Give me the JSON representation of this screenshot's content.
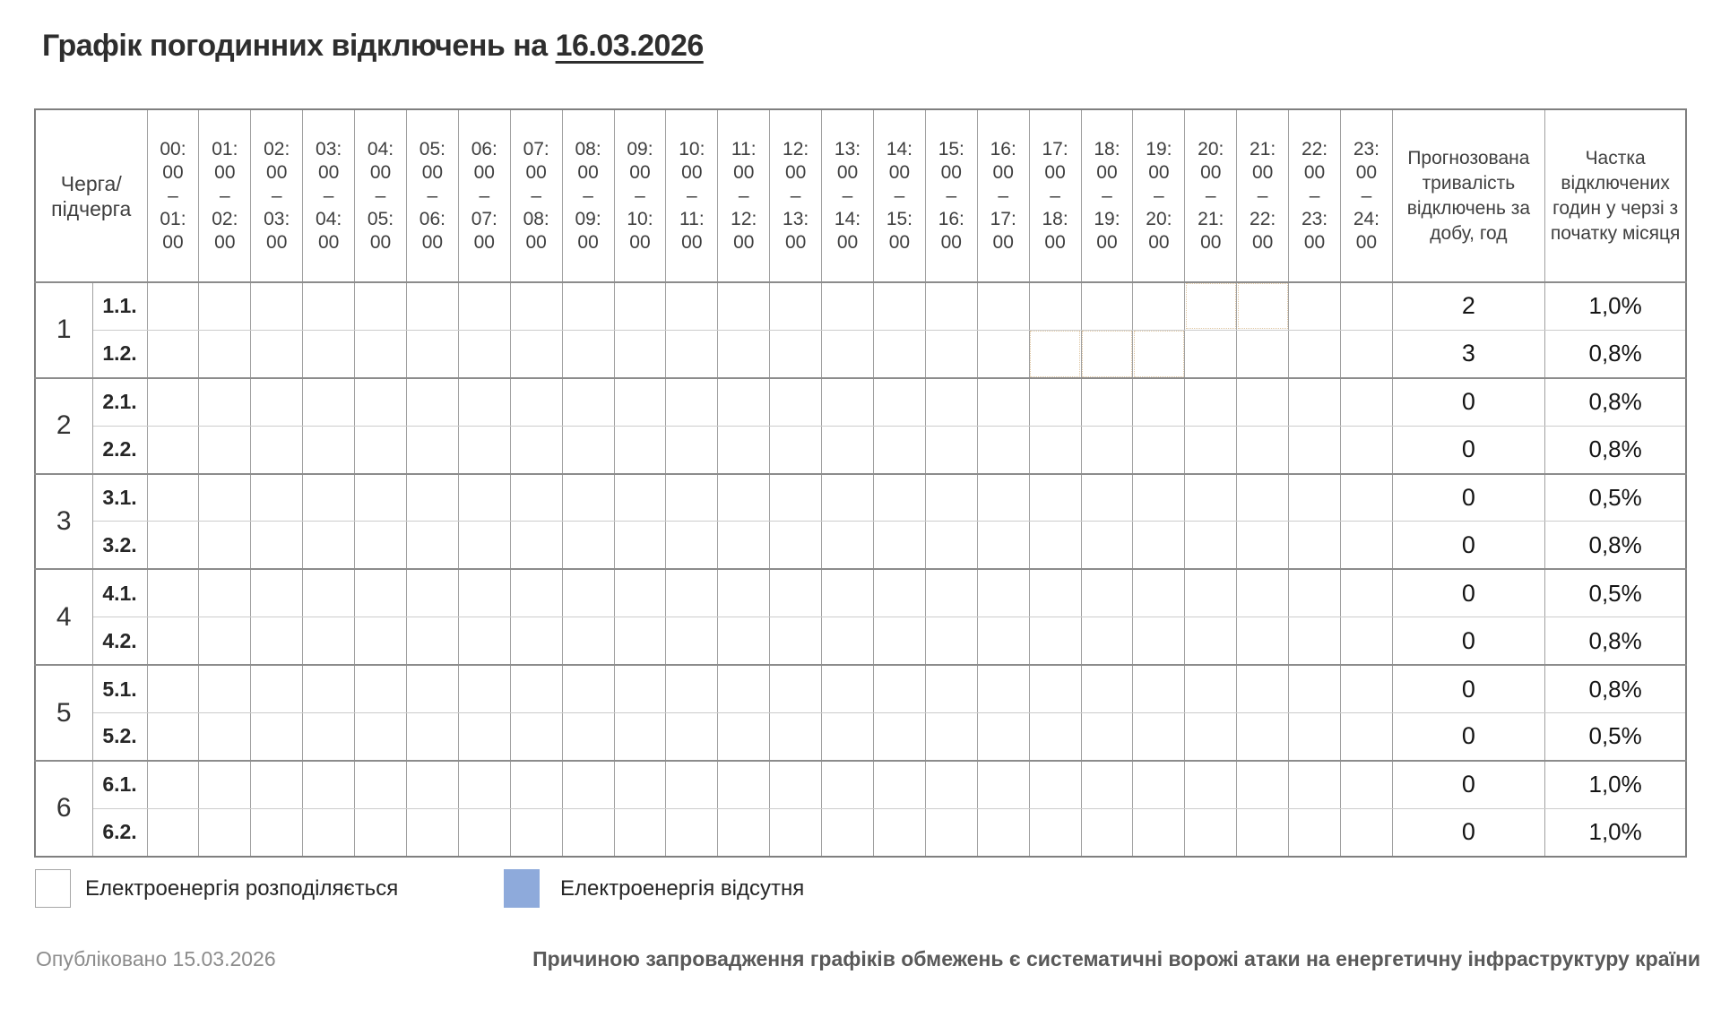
{
  "page": {
    "title_prefix": "Графік погодинних відключень на ",
    "title_date": "16.03.2026"
  },
  "chart_data": {
    "type": "table",
    "title": "Графік погодинних відключень на 16.03.2026",
    "corner_header": "Черга/підчерга",
    "hour_columns": [
      "00:00–01:00",
      "01:00–02:00",
      "02:00–03:00",
      "03:00–04:00",
      "04:00–05:00",
      "05:00–06:00",
      "06:00–07:00",
      "07:00–08:00",
      "08:00–09:00",
      "09:00–10:00",
      "10:00–11:00",
      "11:00–12:00",
      "12:00–13:00",
      "13:00–14:00",
      "14:00–15:00",
      "15:00–16:00",
      "16:00–17:00",
      "17:00–18:00",
      "18:00–19:00",
      "19:00–20:00",
      "20:00–21:00",
      "21:00–22:00",
      "22:00–23:00",
      "23:00–24:00"
    ],
    "duration_header": "Прогнозована тривалість відключень за добу, год",
    "share_header": "Частка відключених годин у черзі з початку місяця",
    "rows": [
      {
        "queue": "1",
        "subqueue": "1.1.",
        "outage_hour_indices": [
          20,
          21
        ],
        "outage_intervals": [
          "20:00–22:00"
        ],
        "duration_hours": 2,
        "share": "1,0%"
      },
      {
        "queue": "1",
        "subqueue": "1.2.",
        "outage_hour_indices": [
          17,
          18,
          19
        ],
        "outage_intervals": [
          "17:00–20:00"
        ],
        "duration_hours": 3,
        "share": "0,8%"
      },
      {
        "queue": "2",
        "subqueue": "2.1.",
        "outage_hour_indices": [],
        "outage_intervals": [],
        "duration_hours": 0,
        "share": "0,8%"
      },
      {
        "queue": "2",
        "subqueue": "2.2.",
        "outage_hour_indices": [],
        "outage_intervals": [],
        "duration_hours": 0,
        "share": "0,8%"
      },
      {
        "queue": "3",
        "subqueue": "3.1.",
        "outage_hour_indices": [],
        "outage_intervals": [],
        "duration_hours": 0,
        "share": "0,5%"
      },
      {
        "queue": "3",
        "subqueue": "3.2.",
        "outage_hour_indices": [],
        "outage_intervals": [],
        "duration_hours": 0,
        "share": "0,8%"
      },
      {
        "queue": "4",
        "subqueue": "4.1.",
        "outage_hour_indices": [],
        "outage_intervals": [],
        "duration_hours": 0,
        "share": "0,5%"
      },
      {
        "queue": "4",
        "subqueue": "4.2.",
        "outage_hour_indices": [],
        "outage_intervals": [],
        "duration_hours": 0,
        "share": "0,8%"
      },
      {
        "queue": "5",
        "subqueue": "5.1.",
        "outage_hour_indices": [],
        "outage_intervals": [],
        "duration_hours": 0,
        "share": "0,8%"
      },
      {
        "queue": "5",
        "subqueue": "5.2.",
        "outage_hour_indices": [],
        "outage_intervals": [],
        "duration_hours": 0,
        "share": "0,5%"
      },
      {
        "queue": "6",
        "subqueue": "6.1.",
        "outage_hour_indices": [],
        "outage_intervals": [],
        "duration_hours": 0,
        "share": "1,0%"
      },
      {
        "queue": "6",
        "subqueue": "6.2.",
        "outage_hour_indices": [],
        "outage_intervals": [],
        "duration_hours": 0,
        "share": "1,0%"
      }
    ],
    "legend": [
      {
        "label": "Електроенергія розподіляється",
        "color": "#FFFFFF"
      },
      {
        "label": "Електроенергія відсутня",
        "color": "#8EAADB"
      }
    ],
    "published": "Опубліковано 15.03.2026",
    "footnote": "Причиною запровадження графіків обмежень є систематичні ворожі атаки на енергетичну інфраструктуру країни"
  },
  "colors": {
    "outage_fill": "#8EAADB",
    "grid_line": "#A0A0A0",
    "subrow_line": "#CCCCCC",
    "group_line": "#8C8C8C",
    "outer_border": "#7F7F7F",
    "title_text": "#2E2E2E",
    "published_text": "#8C8C8C",
    "footnote_text": "#595959"
  }
}
